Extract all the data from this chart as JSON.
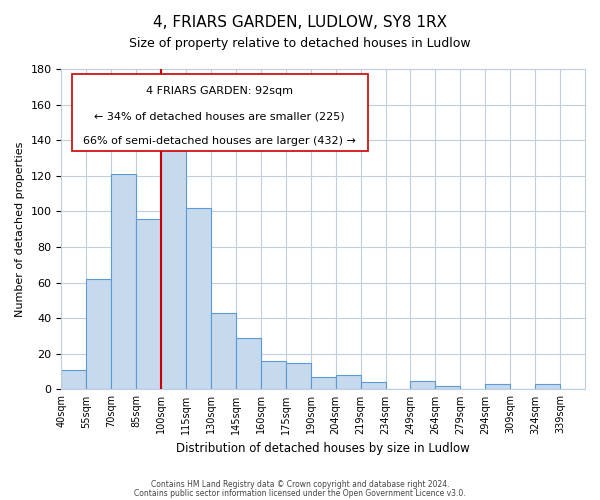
{
  "title": "4, FRIARS GARDEN, LUDLOW, SY8 1RX",
  "subtitle": "Size of property relative to detached houses in Ludlow",
  "xlabel": "Distribution of detached houses by size in Ludlow",
  "ylabel": "Number of detached properties",
  "bar_labels": [
    "40sqm",
    "55sqm",
    "70sqm",
    "85sqm",
    "100sqm",
    "115sqm",
    "130sqm",
    "145sqm",
    "160sqm",
    "175sqm",
    "190sqm",
    "204sqm",
    "219sqm",
    "234sqm",
    "249sqm",
    "264sqm",
    "279sqm",
    "294sqm",
    "309sqm",
    "324sqm",
    "339sqm"
  ],
  "bar_values": [
    11,
    62,
    121,
    96,
    135,
    102,
    43,
    29,
    16,
    15,
    7,
    8,
    4,
    0,
    5,
    2,
    0,
    3,
    0,
    3,
    0
  ],
  "bar_color": "#c7d9ed",
  "bar_edge_color": "#5b9bd5",
  "ylim": [
    0,
    180
  ],
  "yticks": [
    0,
    20,
    40,
    60,
    80,
    100,
    120,
    140,
    160,
    180
  ],
  "vline_x": 4,
  "vline_color": "#cc0000",
  "annotation_title": "4 FRIARS GARDEN: 92sqm",
  "annotation_line1": "← 34% of detached houses are smaller (225)",
  "annotation_line2": "66% of semi-detached houses are larger (432) →",
  "footer1": "Contains HM Land Registry data © Crown copyright and database right 2024.",
  "footer2": "Contains public sector information licensed under the Open Government Licence v3.0.",
  "background_color": "#ffffff",
  "grid_color": "#c0cfe0"
}
